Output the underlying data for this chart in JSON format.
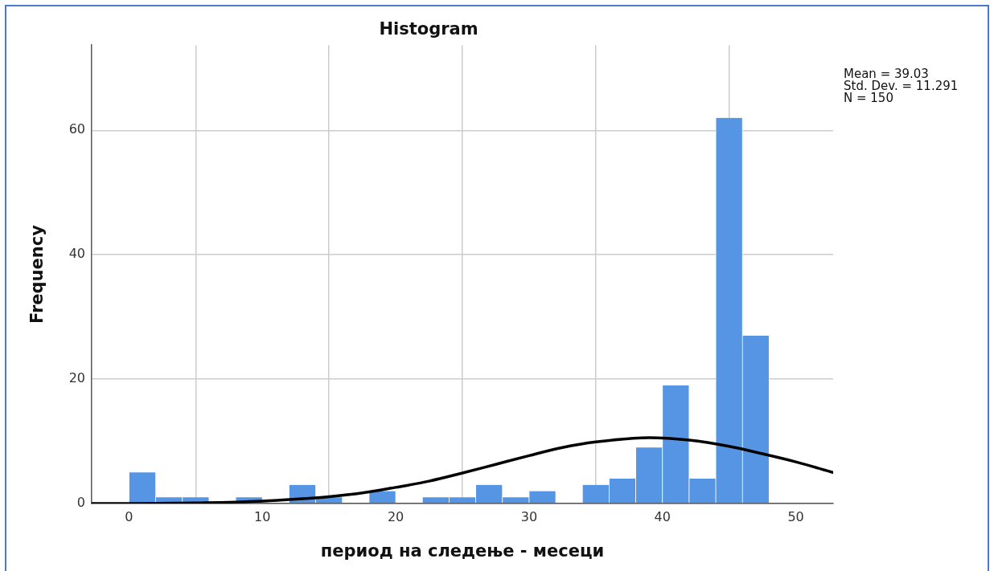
{
  "chart_data": {
    "type": "histogram",
    "title": "Histogram",
    "xlabel": "период на следење - месеци",
    "ylabel": "Frequency",
    "bins": [
      0,
      2,
      4,
      6,
      8,
      10,
      12,
      14,
      16,
      18,
      20,
      22,
      24,
      26,
      28,
      30,
      32,
      34,
      36,
      38,
      40,
      42,
      44,
      46,
      48
    ],
    "series": [
      {
        "color": "#5595e4",
        "values": [
          5,
          1,
          1,
          0,
          1,
          0,
          3,
          1,
          0,
          2,
          0,
          1,
          1,
          3,
          1,
          2,
          0,
          3,
          4,
          9,
          19,
          4,
          62,
          27
        ]
      },
      {
        "type": "line",
        "color": "#000000",
        "x": [
          -2.8,
          0,
          5,
          10,
          12.5,
          15,
          17.5,
          20,
          22.5,
          25,
          27.5,
          30,
          32.5,
          35,
          39,
          42,
          45,
          47.5,
          50,
          52.8
        ],
        "values": [
          0,
          0,
          0.1,
          0.4,
          0.7,
          1.1,
          1.7,
          2.6,
          3.6,
          4.9,
          6.3,
          7.7,
          9.0,
          9.9,
          10.6,
          10.2,
          9.2,
          8.0,
          6.7,
          5.0
        ]
      }
    ],
    "xlim": [
      -2.8,
      52.8
    ],
    "xticks": [
      0,
      10,
      20,
      30,
      40,
      50
    ],
    "ylim": [
      0,
      73.7
    ],
    "yticks": [
      0,
      20,
      40,
      60
    ],
    "grid": true,
    "annotations": [
      "Mean = 39.03",
      "Std. Dev. = 11.291",
      "N = 150"
    ]
  }
}
